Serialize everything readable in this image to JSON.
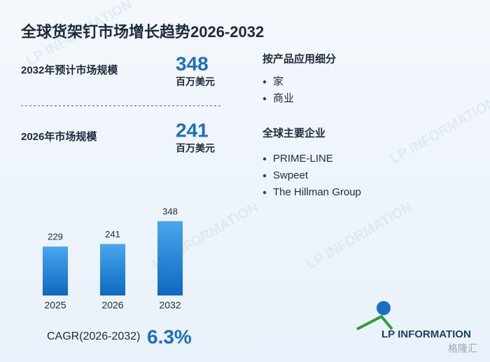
{
  "title": "全球货架钉市场增长趋势2026-2032",
  "stats": [
    {
      "label": "2032年预计市场规模",
      "value": 348,
      "unit": "百万美元"
    },
    {
      "label": "2026年市场规模",
      "value": 241,
      "unit": "百万美元"
    }
  ],
  "segments": {
    "title": "按产品应用细分",
    "items": [
      "家",
      "商业"
    ]
  },
  "companies": {
    "title": "全球主要企业",
    "items": [
      "PRIME-LINE",
      "Swpeet",
      "The Hillman Group"
    ]
  },
  "cagr": {
    "label": "CAGR(2026-2032)",
    "value": "6.3%"
  },
  "logo": "LP INFORMATION",
  "credit": "格隆汇",
  "chart_data": {
    "type": "bar",
    "categories": [
      "2025",
      "2026",
      "2032"
    ],
    "values": [
      229,
      241,
      348
    ],
    "color": "#1a7fd4"
  }
}
